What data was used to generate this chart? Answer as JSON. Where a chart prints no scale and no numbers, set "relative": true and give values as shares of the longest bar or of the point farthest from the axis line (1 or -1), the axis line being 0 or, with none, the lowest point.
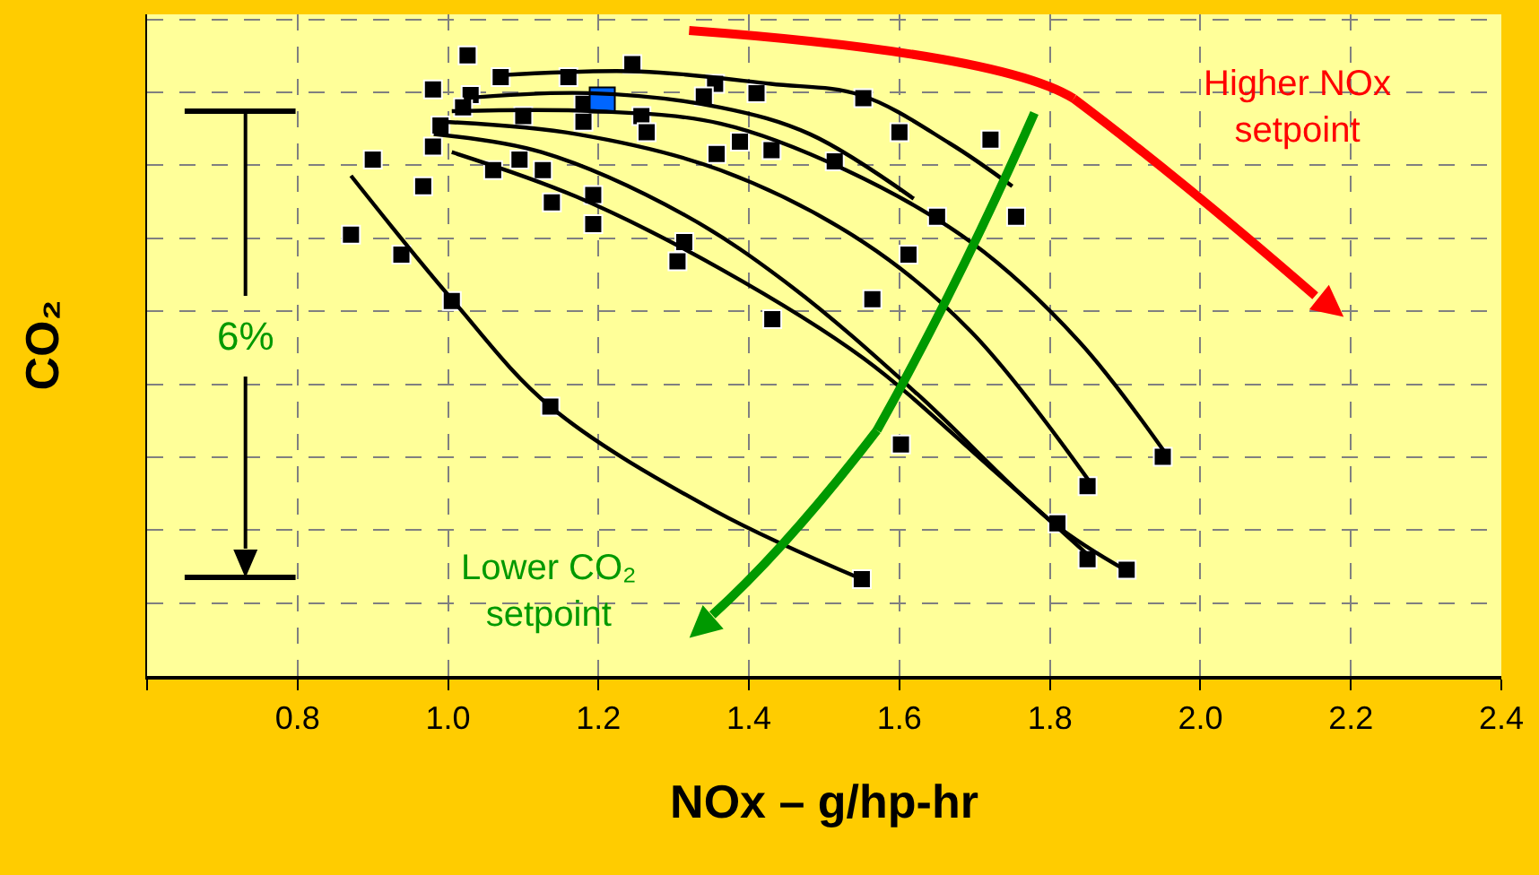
{
  "chart_data": {
    "type": "scatter",
    "xlabel": "NOx – g/hp-hr",
    "ylabel": "CO₂",
    "relative": true,
    "xlim": [
      0.6,
      2.4
    ],
    "xticks": [
      {
        "value": 0.6,
        "label": null
      },
      0.8,
      {
        "value": 1.0,
        "label": "1.0"
      },
      1.2,
      1.4,
      1.6,
      1.8,
      {
        "value": 2.0,
        "label": "2.0"
      },
      2.2,
      2.4
    ],
    "grid": true,
    "annotations": [
      "6%",
      "Higher NOx setpoint",
      "Lower CO₂ setpoint"
    ],
    "series": [
      {
        "marker": "square",
        "color": "#000000",
        "x": [
          1.026,
          1.07,
          1.16,
          1.245,
          0.98,
          1.03,
          1.02,
          1.1,
          1.18,
          1.18,
          1.257,
          1.264,
          1.355,
          1.34,
          1.41,
          1.357,
          1.388,
          1.43,
          0.99,
          0.98,
          0.9,
          1.06,
          1.095,
          1.126,
          0.967,
          1.138,
          1.193,
          1.193,
          0.871,
          0.938,
          1.314,
          1.305,
          1.005,
          1.431,
          1.552,
          1.6,
          1.721,
          1.65,
          1.755,
          1.612,
          1.564,
          1.514,
          1.136,
          1.602,
          1.95,
          1.85,
          1.81,
          1.85,
          1.902,
          1.55
        ],
        "values": [
          1.0,
          0.965,
          0.965,
          0.986,
          0.945,
          0.936,
          0.916,
          0.902,
          0.922,
          0.893,
          0.902,
          0.876,
          0.954,
          0.934,
          0.939,
          0.841,
          0.861,
          0.847,
          0.887,
          0.853,
          0.832,
          0.815,
          0.832,
          0.815,
          0.789,
          0.763,
          0.775,
          0.728,
          0.711,
          0.679,
          0.699,
          0.668,
          0.604,
          0.575,
          0.931,
          0.876,
          0.864,
          0.74,
          0.74,
          0.679,
          0.607,
          0.829,
          0.434,
          0.373,
          0.353,
          0.306,
          0.246,
          0.188,
          0.171,
          0.156
        ]
      },
      {
        "marker": "square",
        "color": "#0066ff",
        "x": [
          1.205
        ],
        "values": [
          0.928
        ]
      },
      {
        "type": "line",
        "marker": "none",
        "color": "#000000",
        "x": [
          1.07,
          1.255,
          1.429,
          1.548,
          1.667,
          1.75
        ],
        "values": [
          0.968,
          0.974,
          0.954,
          0.936,
          0.858,
          0.789
        ]
      },
      {
        "type": "line",
        "marker": "none",
        "color": "#000000",
        "x": [
          1.021,
          1.188,
          1.362,
          1.481,
          1.619
        ],
        "values": [
          0.931,
          0.939,
          0.916,
          0.873,
          0.769
        ]
      },
      {
        "type": "line",
        "marker": "none",
        "color": "#000000",
        "x": [
          1.005,
          1.195,
          1.362,
          1.529,
          1.695,
          1.838,
          1.957
        ],
        "values": [
          0.91,
          0.91,
          0.89,
          0.815,
          0.699,
          0.54,
          0.353
        ]
      },
      {
        "type": "line",
        "marker": "none",
        "color": "#000000",
        "x": [
          0.993,
          1.171,
          1.362,
          1.552,
          1.695,
          1.857
        ],
        "values": [
          0.893,
          0.873,
          0.815,
          0.699,
          0.555,
          0.306
        ]
      },
      {
        "type": "line",
        "marker": "none",
        "color": "#000000",
        "x": [
          0.981,
          1.124,
          1.314,
          1.457,
          1.624,
          1.805,
          1.9
        ],
        "values": [
          0.873,
          0.844,
          0.743,
          0.627,
          0.454,
          0.246,
          0.171
        ]
      },
      {
        "type": "line",
        "marker": "none",
        "color": "#000000",
        "x": [
          1.005,
          1.171,
          1.362,
          1.552,
          1.719,
          1.857
        ],
        "values": [
          0.844,
          0.772,
          0.656,
          0.512,
          0.338,
          0.188
        ]
      },
      {
        "type": "line",
        "marker": "none",
        "color": "#000000",
        "x": [
          0.871,
          1.005,
          1.136,
          1.355,
          1.55
        ],
        "values": [
          0.806,
          0.607,
          0.434,
          0.266,
          0.156
        ]
      }
    ]
  }
}
